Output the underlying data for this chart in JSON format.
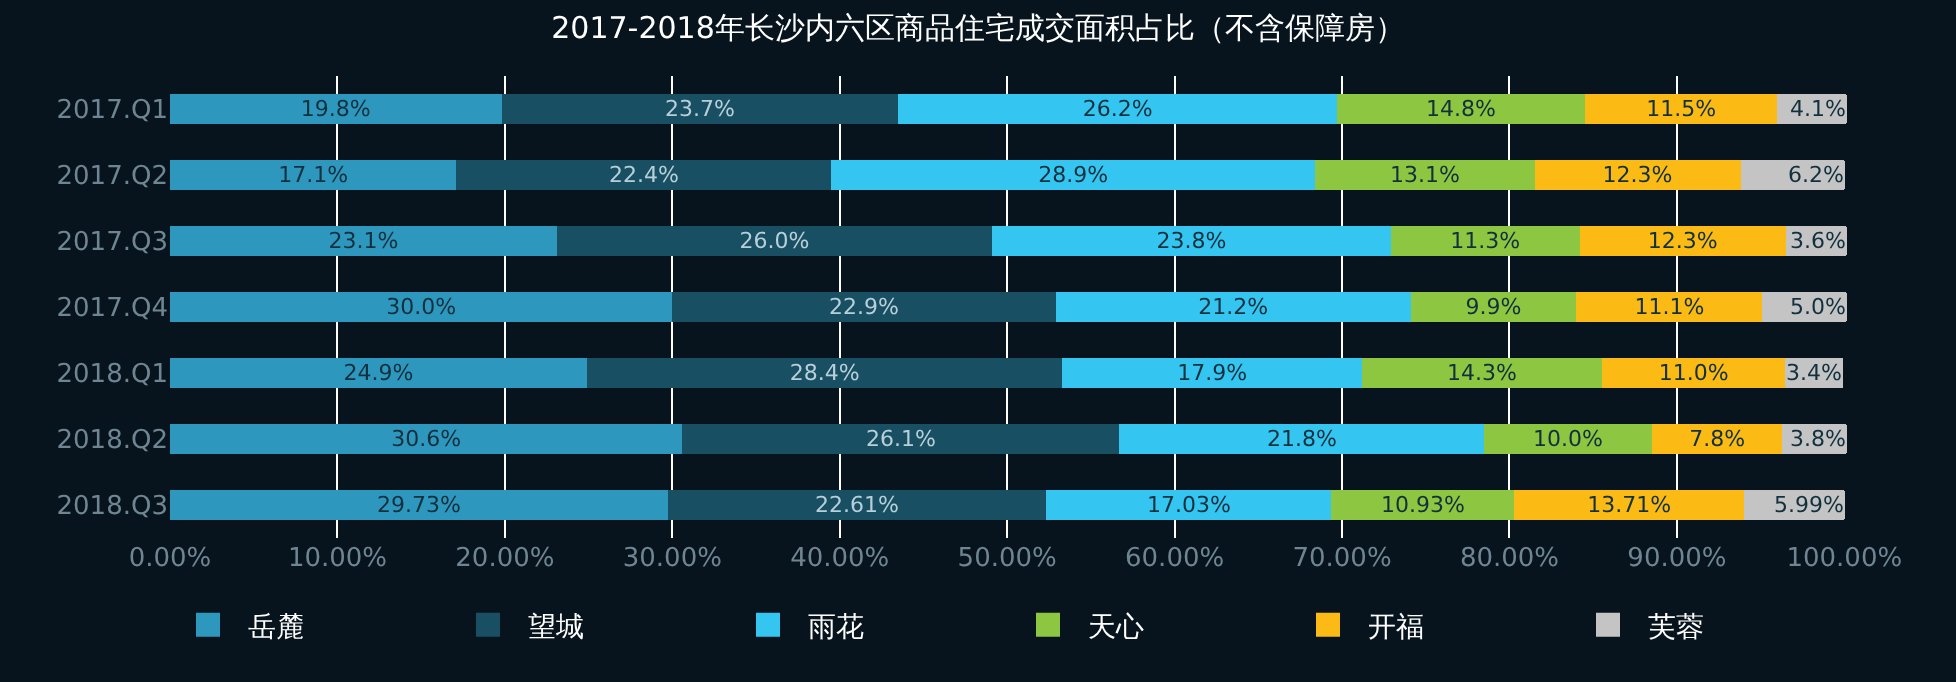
{
  "chart_data": {
    "type": "bar",
    "orientation": "horizontal",
    "stacked": true,
    "title": "2017-2018年长沙内六区商品住宅成交面积占比（不含保障房）",
    "categories": [
      "2017.Q1",
      "2017.Q2",
      "2017.Q3",
      "2017.Q4",
      "2018.Q1",
      "2018.Q2",
      "2018.Q3"
    ],
    "series": [
      {
        "name": "岳麓",
        "color": "#2e97bd",
        "values": [
          19.8,
          17.1,
          23.1,
          30.0,
          24.9,
          30.6,
          29.73
        ],
        "value_labels": [
          "19.8%",
          "17.1%",
          "23.1%",
          "30.0%",
          "24.9%",
          "30.6%",
          "29.73%"
        ]
      },
      {
        "name": "望城",
        "color": "#184f63",
        "values": [
          23.7,
          22.4,
          26.0,
          22.9,
          28.4,
          26.1,
          22.61
        ],
        "value_labels": [
          "23.7%",
          "22.4%",
          "26.0%",
          "22.9%",
          "28.4%",
          "26.1%",
          "22.61%"
        ]
      },
      {
        "name": "雨花",
        "color": "#34c6f0",
        "values": [
          26.2,
          28.9,
          23.8,
          21.2,
          17.9,
          21.8,
          17.03
        ],
        "value_labels": [
          "26.2%",
          "28.9%",
          "23.8%",
          "21.2%",
          "17.9%",
          "21.8%",
          "17.03%"
        ]
      },
      {
        "name": "天心",
        "color": "#8dc640",
        "values": [
          14.8,
          13.1,
          11.3,
          9.9,
          14.3,
          10.0,
          10.93
        ],
        "value_labels": [
          "14.8%",
          "13.1%",
          "11.3%",
          "9.9%",
          "14.3%",
          "10.0%",
          "10.93%"
        ]
      },
      {
        "name": "开福",
        "color": "#fbbb14",
        "values": [
          11.5,
          12.3,
          12.3,
          11.1,
          11.0,
          7.8,
          13.71
        ],
        "value_labels": [
          "11.5%",
          "12.3%",
          "12.3%",
          "11.1%",
          "11.0%",
          "7.8%",
          "13.71%"
        ]
      },
      {
        "name": "芙蓉",
        "color": "#c4c4c4",
        "values": [
          4.1,
          6.2,
          3.6,
          5.0,
          3.4,
          3.8,
          5.99
        ],
        "value_labels": [
          "4.1%",
          "6.2%",
          "3.6%",
          "5.0%",
          "3.4%",
          "3.8%",
          "5.99%"
        ]
      }
    ],
    "xlim": [
      0,
      100.1
    ],
    "xticks": [
      {
        "value": 0,
        "label": "0.00%"
      },
      {
        "value": 10,
        "label": "10.00%"
      },
      {
        "value": 20,
        "label": "20.00%"
      },
      {
        "value": 30,
        "label": "30.00%"
      },
      {
        "value": 40,
        "label": "40.00%"
      },
      {
        "value": 50,
        "label": "50.00%"
      },
      {
        "value": 60,
        "label": "60.00%"
      },
      {
        "value": 70,
        "label": "70.00%"
      },
      {
        "value": 80,
        "label": "80.00%"
      },
      {
        "value": 90,
        "label": "90.00%"
      },
      {
        "value": 100,
        "label": "100.00%"
      }
    ],
    "grid": "x",
    "legend": "bottom"
  }
}
